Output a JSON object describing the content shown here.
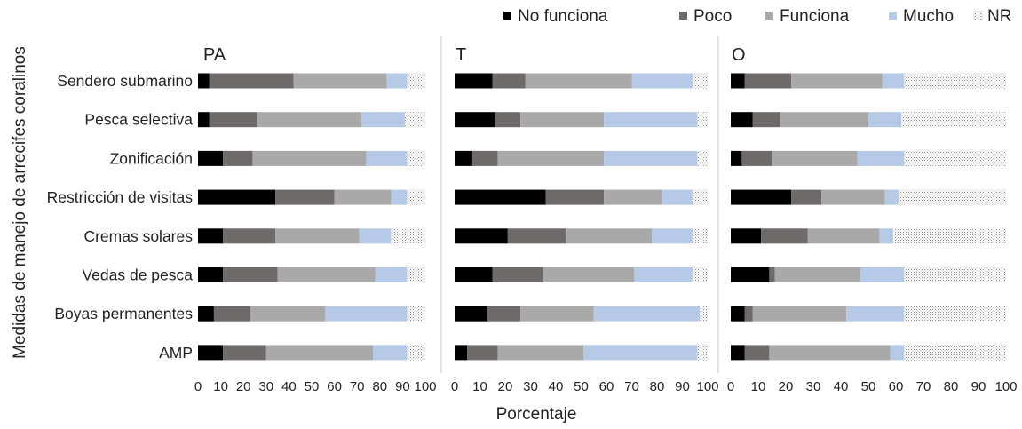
{
  "chart_data": {
    "type": "bar",
    "orientation": "horizontal",
    "stacked": true,
    "xlabel": "Porcentaje",
    "ylabel": "Medidas de manejo de arrecifes coralinos",
    "xlim": [
      0,
      100
    ],
    "xticks": [
      "0",
      "10",
      "20",
      "30",
      "40",
      "50",
      "60",
      "70",
      "80",
      "90",
      "100"
    ],
    "categories": [
      "Sendero submarino",
      "Pesca selectiva",
      "Zonificación",
      "Restricción de visitas",
      "Cremas solares",
      "Vedas de pesca",
      "Boyas permanentes",
      "AMP"
    ],
    "legend": {
      "position": "top-right",
      "entries": [
        {
          "name": "No funciona",
          "color": "#000000"
        },
        {
          "name": "Poco",
          "color": "#6f6a6a"
        },
        {
          "name": "Funciona",
          "color": "#a9a9a9"
        },
        {
          "name": "Mucho",
          "color": "#b6c9e6"
        },
        {
          "name": "NR",
          "color": "#ffffff",
          "pattern": "dots"
        }
      ]
    },
    "panels": [
      {
        "title": "PA",
        "series": [
          {
            "name": "No funciona",
            "values": [
              5,
              5,
              11,
              34,
              11,
              11,
              7,
              11
            ]
          },
          {
            "name": "Poco",
            "values": [
              37,
              21,
              13,
              26,
              23,
              24,
              16,
              19
            ]
          },
          {
            "name": "Funciona",
            "values": [
              41,
              46,
              50,
              25,
              37,
              43,
              33,
              47
            ]
          },
          {
            "name": "Mucho",
            "values": [
              9,
              19,
              18,
              7,
              14,
              14,
              36,
              15
            ]
          },
          {
            "name": "NR",
            "values": [
              8,
              9,
              8,
              8,
              15,
              8,
              8,
              8
            ]
          }
        ]
      },
      {
        "title": "T",
        "series": [
          {
            "name": "No funciona",
            "values": [
              15,
              16,
              7,
              36,
              21,
              15,
              13,
              5
            ]
          },
          {
            "name": "Poco",
            "values": [
              13,
              10,
              10,
              23,
              23,
              20,
              13,
              12
            ]
          },
          {
            "name": "Funciona",
            "values": [
              42,
              33,
              42,
              23,
              34,
              36,
              29,
              34
            ]
          },
          {
            "name": "Mucho",
            "values": [
              24,
              37,
              37,
              12,
              16,
              23,
              42,
              45
            ]
          },
          {
            "name": "NR",
            "values": [
              6,
              4,
              4,
              6,
              6,
              6,
              3,
              4
            ]
          }
        ]
      },
      {
        "title": "O",
        "series": [
          {
            "name": "No funciona",
            "values": [
              5,
              8,
              4,
              22,
              11,
              14,
              5,
              5
            ]
          },
          {
            "name": "Poco",
            "values": [
              17,
              10,
              11,
              11,
              17,
              2,
              3,
              9
            ]
          },
          {
            "name": "Funciona",
            "values": [
              33,
              32,
              31,
              23,
              26,
              31,
              34,
              44
            ]
          },
          {
            "name": "Mucho",
            "values": [
              8,
              12,
              17,
              5,
              5,
              16,
              21,
              5
            ]
          },
          {
            "name": "NR",
            "values": [
              37,
              38,
              37,
              39,
              41,
              37,
              37,
              37
            ]
          }
        ]
      }
    ]
  }
}
